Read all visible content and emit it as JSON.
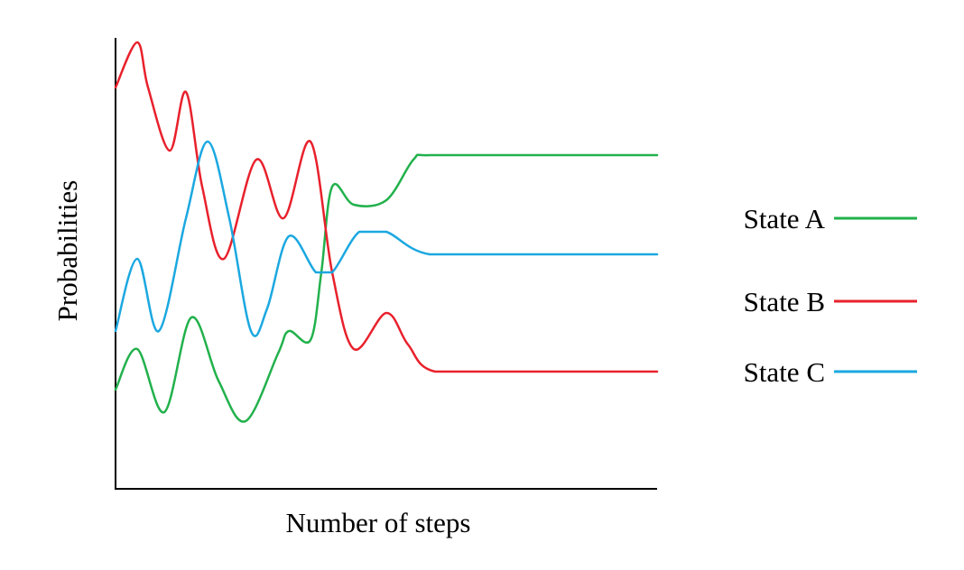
{
  "chart_data": {
    "type": "line",
    "title": "",
    "xlabel": "Number of steps",
    "ylabel": "Probabilities",
    "xlim": [
      0,
      100
    ],
    "ylim": [
      0,
      100
    ],
    "grid": false,
    "legend_position": "right",
    "series": [
      {
        "name": "State A",
        "color": "#22b14c",
        "points": [
          [
            0,
            22
          ],
          [
            4,
            31
          ],
          [
            9,
            17
          ],
          [
            14,
            38
          ],
          [
            19,
            24
          ],
          [
            24,
            15
          ],
          [
            30,
            30
          ],
          [
            32,
            35
          ],
          [
            36,
            33
          ],
          [
            38,
            48
          ],
          [
            40,
            67
          ],
          [
            44,
            63
          ],
          [
            50,
            64
          ],
          [
            55,
            73
          ],
          [
            58,
            74
          ],
          [
            75,
            74
          ],
          [
            100,
            74
          ]
        ]
      },
      {
        "name": "State B",
        "color": "#e8212c",
        "points": [
          [
            0,
            89
          ],
          [
            4,
            99
          ],
          [
            6,
            89
          ],
          [
            10,
            75
          ],
          [
            13,
            88
          ],
          [
            16,
            67
          ],
          [
            20,
            51
          ],
          [
            26,
            73
          ],
          [
            31,
            60
          ],
          [
            36,
            77
          ],
          [
            40,
            48
          ],
          [
            44,
            31
          ],
          [
            50,
            39
          ],
          [
            54,
            32
          ],
          [
            59,
            26
          ],
          [
            75,
            26
          ],
          [
            100,
            26
          ]
        ]
      },
      {
        "name": "State C",
        "color": "#1ba8e0",
        "points": [
          [
            0,
            35
          ],
          [
            4,
            51
          ],
          [
            8,
            35
          ],
          [
            13,
            60
          ],
          [
            17,
            77
          ],
          [
            21,
            60
          ],
          [
            25,
            35
          ],
          [
            28,
            40
          ],
          [
            32,
            56
          ],
          [
            37,
            48
          ],
          [
            40,
            48
          ],
          [
            45,
            57
          ],
          [
            50,
            57
          ],
          [
            58,
            52
          ],
          [
            75,
            52
          ],
          [
            100,
            52
          ]
        ]
      }
    ]
  }
}
